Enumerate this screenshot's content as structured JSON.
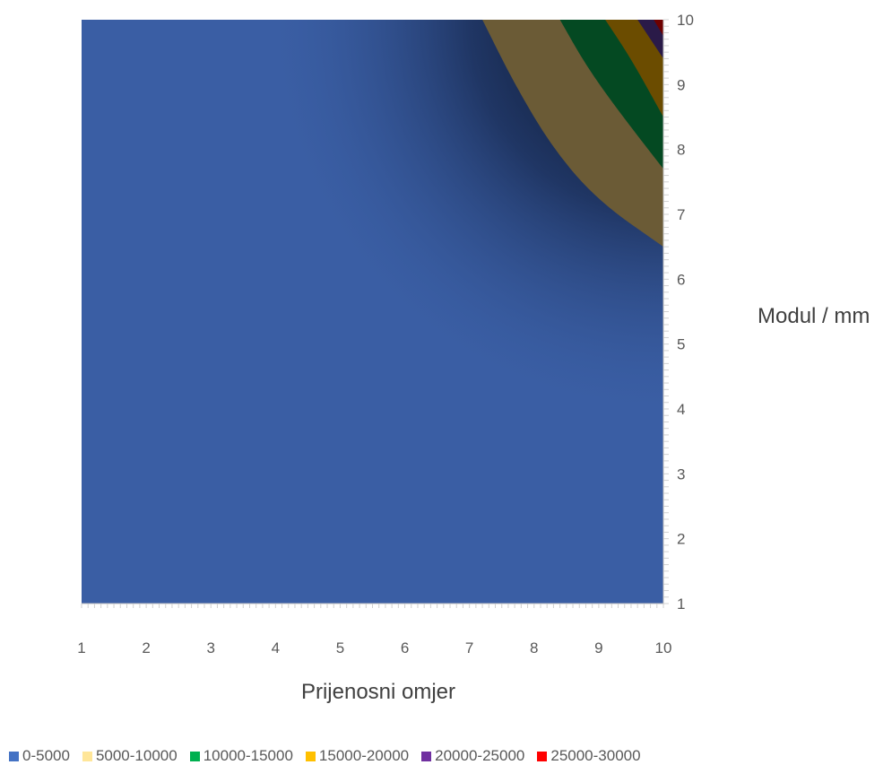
{
  "chart_data": {
    "type": "surface-contour",
    "x_label": "Prijenosni omjer",
    "y_label": "Modul / mm",
    "x_ticks": [
      "1",
      "2",
      "3",
      "4",
      "5",
      "6",
      "7",
      "8",
      "9",
      "10"
    ],
    "y_ticks": [
      "1",
      "2",
      "3",
      "4",
      "5",
      "6",
      "7",
      "8",
      "9",
      "10"
    ],
    "xlim": [
      1,
      10
    ],
    "ylim": [
      1,
      10
    ],
    "legend": [
      {
        "label": "0-5000",
        "color": "#4472c4"
      },
      {
        "label": "5000-10000",
        "color": "#ffe699"
      },
      {
        "label": "10000-15000",
        "color": "#00b050"
      },
      {
        "label": "15000-20000",
        "color": "#ffc000"
      },
      {
        "label": "20000-25000",
        "color": "#7030a0"
      },
      {
        "label": "25000-30000",
        "color": "#ff0000"
      }
    ],
    "band_colors": [
      "#3a5ea4",
      "#6b5b36",
      "#044922",
      "#6b4c00",
      "#2a1a48",
      "#6e0000"
    ],
    "contours": [
      {
        "level": 5000,
        "points": [
          [
            7.2,
            10
          ],
          [
            7.7,
            9.0
          ],
          [
            8.3,
            8.0
          ],
          [
            9.0,
            7.2
          ],
          [
            10,
            6.5
          ]
        ]
      },
      {
        "level": 10000,
        "points": [
          [
            8.4,
            10
          ],
          [
            8.8,
            9.3
          ],
          [
            9.3,
            8.6
          ],
          [
            10,
            7.7
          ]
        ]
      },
      {
        "level": 15000,
        "points": [
          [
            9.1,
            10
          ],
          [
            9.5,
            9.4
          ],
          [
            10,
            8.5
          ]
        ]
      },
      {
        "level": 20000,
        "points": [
          [
            9.6,
            10
          ],
          [
            10,
            9.4
          ]
        ]
      },
      {
        "level": 25000,
        "points": [
          [
            9.85,
            10
          ],
          [
            10,
            9.75
          ]
        ]
      }
    ]
  }
}
